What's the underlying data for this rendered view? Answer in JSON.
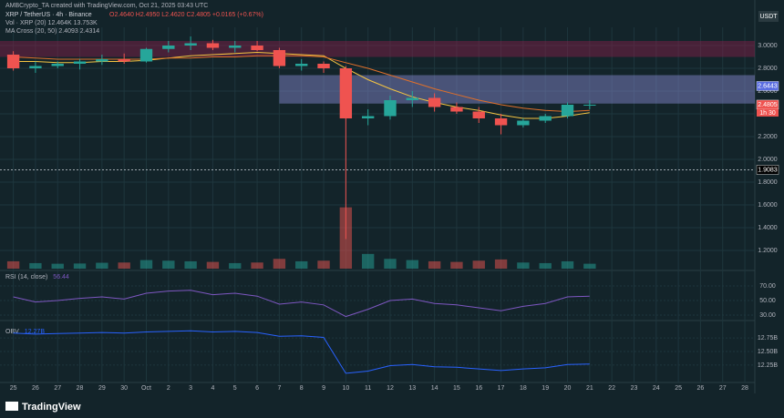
{
  "header": {
    "credit": "AMBCrypto_TA created with TradingView.com, Oct 21, 2025 03:43 UTC",
    "currency": "USDT",
    "logo": "TradingView"
  },
  "chart_data": [
    {
      "type": "candlestick",
      "title": "XRP / TetherUS · 4h · Binance",
      "ohlc_text": "O2.4640 H2.4950 L2.4620 C2.4805 +0.0165 (+0.67%)",
      "indicators": [
        "Vol · XRP (20)  12.464K  13.753K",
        "MA Cross (20, 50)  2.4093  2.4314"
      ],
      "x": [
        0,
        1,
        2,
        3,
        4,
        5,
        6,
        7,
        8,
        9,
        10,
        11,
        12,
        13,
        14,
        15,
        16,
        17,
        18,
        19,
        20,
        21,
        22,
        23,
        24,
        25,
        26
      ],
      "open": [
        2.92,
        2.8,
        2.82,
        2.84,
        2.86,
        2.88,
        2.86,
        2.97,
        3.0,
        3.02,
        2.98,
        3.0,
        2.96,
        2.82,
        2.84,
        2.8,
        2.36,
        2.38,
        2.52,
        2.54,
        2.46,
        2.42,
        2.36,
        2.3,
        2.34,
        2.38,
        2.48
      ],
      "high": [
        2.95,
        2.86,
        2.86,
        2.88,
        2.92,
        2.93,
        2.98,
        3.04,
        3.08,
        3.05,
        3.04,
        3.04,
        2.98,
        2.88,
        2.86,
        2.82,
        2.44,
        2.56,
        2.6,
        2.58,
        2.5,
        2.46,
        2.4,
        2.36,
        2.4,
        2.5,
        2.52
      ],
      "low": [
        2.78,
        2.76,
        2.8,
        2.79,
        2.83,
        2.84,
        2.85,
        2.94,
        2.96,
        2.96,
        2.94,
        2.95,
        2.8,
        2.78,
        2.76,
        1.3,
        2.3,
        2.35,
        2.46,
        2.42,
        2.4,
        2.32,
        2.22,
        2.28,
        2.32,
        2.36,
        2.44
      ],
      "close": [
        2.8,
        2.82,
        2.84,
        2.86,
        2.88,
        2.86,
        2.97,
        3.0,
        3.02,
        2.98,
        3.0,
        2.96,
        2.82,
        2.84,
        2.8,
        2.36,
        2.38,
        2.52,
        2.54,
        2.46,
        2.42,
        2.36,
        2.3,
        2.34,
        2.38,
        2.48,
        2.48
      ],
      "up_color": "#26a69a",
      "down_color": "#ef5350",
      "ma_lines": [
        {
          "color": "#f5c542",
          "values": [
            2.86,
            2.86,
            2.85,
            2.85,
            2.86,
            2.86,
            2.87,
            2.89,
            2.91,
            2.92,
            2.93,
            2.94,
            2.93,
            2.92,
            2.91,
            2.8,
            2.7,
            2.62,
            2.55,
            2.5,
            2.46,
            2.43,
            2.39,
            2.36,
            2.36,
            2.38,
            2.41
          ]
        },
        {
          "color": "#e0702a",
          "values": [
            2.9,
            2.89,
            2.88,
            2.88,
            2.88,
            2.88,
            2.88,
            2.89,
            2.89,
            2.9,
            2.9,
            2.91,
            2.91,
            2.91,
            2.9,
            2.85,
            2.8,
            2.74,
            2.68,
            2.62,
            2.57,
            2.52,
            2.48,
            2.45,
            2.43,
            2.42,
            2.43
          ]
        }
      ],
      "volume": [
        60,
        45,
        40,
        42,
        48,
        50,
        70,
        65,
        60,
        55,
        45,
        50,
        80,
        60,
        65,
        500,
        120,
        80,
        70,
        60,
        55,
        65,
        75,
        50,
        45,
        60,
        40
      ],
      "vlim": [
        0,
        520
      ],
      "zones": [
        {
          "from": 2.9,
          "to": 3.04,
          "start": -0.6,
          "color": "#8a1e4a"
        },
        {
          "from": 2.49,
          "to": 2.74,
          "start": 12,
          "color": "#8c8fd6"
        }
      ],
      "level": 1.9083,
      "price_labels": [
        {
          "value": 2.6443,
          "color": "#5b6ee1"
        },
        {
          "value": 2.4805,
          "color": "#ef5350"
        },
        {
          "value": 1.9083,
          "color": "#000000"
        }
      ],
      "countdown": "1h 30",
      "xlim": [
        -0.6,
        33.45
      ],
      "xticks": [
        {
          "value": 0,
          "label": "25"
        },
        {
          "value": 1,
          "label": "26"
        },
        {
          "value": 2,
          "label": "27"
        },
        {
          "value": 3,
          "label": "28"
        },
        {
          "value": 4,
          "label": "29"
        },
        {
          "value": 5,
          "label": "30"
        },
        {
          "value": 6,
          "label": "Oct"
        },
        {
          "value": 7,
          "label": "2"
        },
        {
          "value": 8,
          "label": "3"
        },
        {
          "value": 9,
          "label": "4"
        },
        {
          "value": 10,
          "label": "5"
        },
        {
          "value": 11,
          "label": "6"
        },
        {
          "value": 12,
          "label": "7"
        },
        {
          "value": 13,
          "label": "8"
        },
        {
          "value": 14,
          "label": "9"
        },
        {
          "value": 15,
          "label": "10"
        },
        {
          "value": 16,
          "label": "11"
        },
        {
          "value": 17,
          "label": "12"
        },
        {
          "value": 18,
          "label": "13"
        },
        {
          "value": 19,
          "label": "14"
        },
        {
          "value": 20,
          "label": "15"
        },
        {
          "value": 21,
          "label": "16"
        },
        {
          "value": 22,
          "label": "17"
        },
        {
          "value": 23,
          "label": "18"
        },
        {
          "value": 24,
          "label": "19"
        },
        {
          "value": 25,
          "label": "20"
        },
        {
          "value": 26,
          "label": "21"
        },
        {
          "value": 27,
          "label": "22"
        },
        {
          "value": 28,
          "label": "23"
        },
        {
          "value": 29,
          "label": "24"
        },
        {
          "value": 30,
          "label": "25"
        },
        {
          "value": 31,
          "label": "26"
        },
        {
          "value": 32,
          "label": "27"
        },
        {
          "value": 33,
          "label": "28"
        }
      ],
      "ylim": [
        1.04,
        3.08
      ],
      "yticks": [
        {
          "value": 1.2,
          "label": "1.2000"
        },
        {
          "value": 1.4,
          "label": "1.4000"
        },
        {
          "value": 1.6,
          "label": "1.6000"
        },
        {
          "value": 1.8,
          "label": "1.8000"
        },
        {
          "value": 2.0,
          "label": "2.0000"
        },
        {
          "value": 2.2,
          "label": "2.2000"
        },
        {
          "value": 2.4,
          "label": "2.4000"
        },
        {
          "value": 2.6,
          "label": "2.6000"
        },
        {
          "value": 2.8,
          "label": "2.8000"
        },
        {
          "value": 3.0,
          "label": "3.0000"
        }
      ]
    },
    {
      "type": "line",
      "title": "RSI (14, close)",
      "legend_value": "56.44",
      "color": "#7e57c2",
      "values": [
        55,
        48,
        50,
        53,
        55,
        52,
        60,
        63,
        64,
        58,
        60,
        56,
        45,
        48,
        44,
        28,
        38,
        50,
        52,
        46,
        44,
        40,
        36,
        42,
        46,
        55,
        56
      ],
      "ylim": [
        22.5,
        87.5
      ],
      "yticks": [
        {
          "value": 30,
          "label": "30.00"
        },
        {
          "value": 50,
          "label": "50.00"
        },
        {
          "value": 70,
          "label": "70.00"
        }
      ]
    },
    {
      "type": "line",
      "title": "OBV",
      "legend_value": "12.27B",
      "color": "#2962ff",
      "values": [
        12.84,
        12.82,
        12.83,
        12.84,
        12.85,
        12.84,
        12.86,
        12.87,
        12.88,
        12.86,
        12.87,
        12.85,
        12.78,
        12.79,
        12.76,
        12.1,
        12.14,
        12.24,
        12.26,
        12.22,
        12.21,
        12.18,
        12.15,
        12.18,
        12.2,
        12.26,
        12.27
      ],
      "ylim": [
        11.93,
        13.02
      ],
      "yticks": [
        {
          "value": 12.25,
          "label": "12.25B"
        },
        {
          "value": 12.5,
          "label": "12.50B"
        },
        {
          "value": 12.75,
          "label": "12.75B"
        }
      ]
    }
  ]
}
